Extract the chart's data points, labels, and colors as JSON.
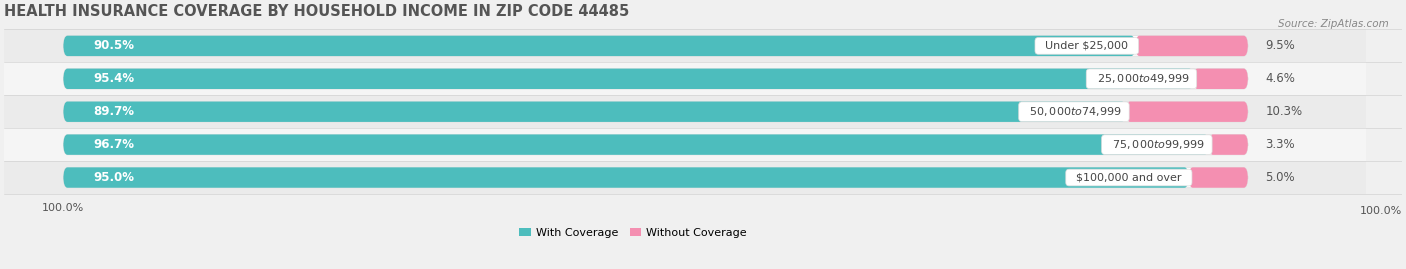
{
  "title": "HEALTH INSURANCE COVERAGE BY HOUSEHOLD INCOME IN ZIP CODE 44485",
  "source": "Source: ZipAtlas.com",
  "categories": [
    "Under $25,000",
    "$25,000 to $49,999",
    "$50,000 to $74,999",
    "$75,000 to $99,999",
    "$100,000 and over"
  ],
  "with_coverage": [
    90.5,
    95.4,
    89.7,
    96.7,
    95.0
  ],
  "without_coverage": [
    9.5,
    4.6,
    10.3,
    3.3,
    5.0
  ],
  "color_with": "#4DBDBD",
  "color_without": "#F48FB1",
  "color_without_light": "#F7B8CE",
  "bg_color": "#F0F0F0",
  "bar_bg_color": "#FFFFFF",
  "row_bg_even": "#EBEBEB",
  "row_bg_odd": "#F5F5F5",
  "title_fontsize": 10.5,
  "source_fontsize": 7.5,
  "label_fontsize": 8.5,
  "cat_fontsize": 8,
  "legend_fontsize": 8,
  "figsize": [
    14.06,
    2.69
  ]
}
